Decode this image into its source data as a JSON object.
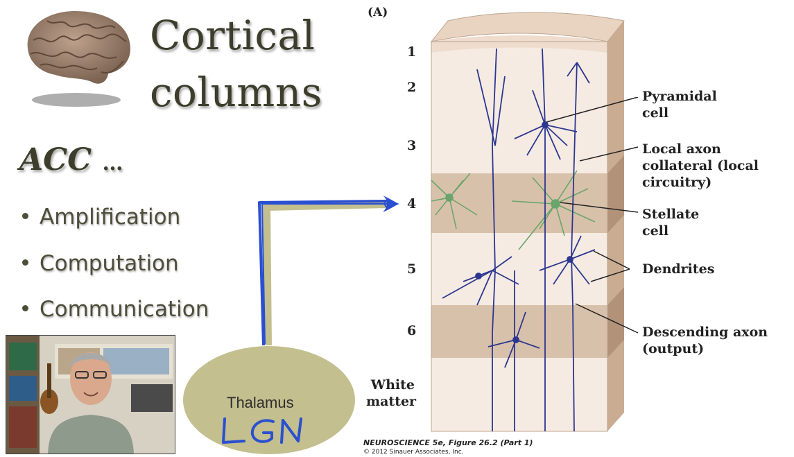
{
  "slide": {
    "title_line1": "Cortical",
    "title_line2": "columns",
    "acc_label": "ACC",
    "acc_suffix": "…",
    "bullets": [
      "Amplification",
      "Computation",
      "Communication"
    ]
  },
  "thalamus": {
    "label": "Thalamus",
    "handwriting": "LGN",
    "fill_color": "#c3bf8e",
    "ink_color": "#2a4fd0"
  },
  "figure": {
    "panel_label": "(A)",
    "layers": [
      "1",
      "2",
      "3",
      "4",
      "5",
      "6"
    ],
    "white_matter_line1": "White",
    "white_matter_line2": "matter",
    "labels": {
      "pyramidal": [
        "Pyramidal",
        "cell"
      ],
      "local_axon": [
        "Local axon",
        "collateral (local",
        "circuitry)"
      ],
      "stellate": [
        "Stellate",
        "cell"
      ],
      "dendrites": [
        "Dendrites"
      ],
      "descending": [
        "Descending axon",
        "(output)"
      ]
    },
    "caption_line1": "NEUROSCIENCE 5e, Figure 26.2 (Part 1)",
    "caption_line2": "© 2012 Sinauer Associates, Inc.",
    "colors": {
      "neuron_blue": "#2c3690",
      "stellate_green": "#6aa56b",
      "layer_light": "#f5ebe2",
      "layer_dark": "#d8c1aa",
      "top_face": "#e9d4c2",
      "side_face": "#c9ac92"
    }
  },
  "video": {
    "description_icons": [
      "person-icon"
    ]
  }
}
